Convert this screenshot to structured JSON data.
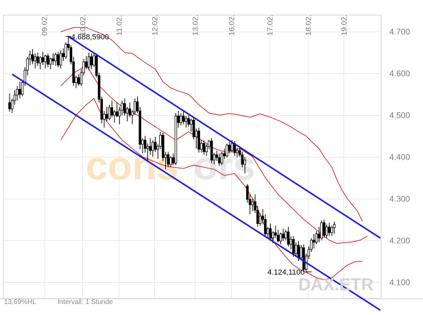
{
  "chart_data": {
    "type": "candlestick",
    "x_tick_labels": [
      "09.02.",
      "10.02.",
      "11.02.",
      "12.02.",
      "13.02.",
      "16.02.",
      "17.02.",
      "18.02.",
      "19.02."
    ],
    "y_ticks": [
      4100,
      4200,
      4300,
      4400,
      4500,
      4600,
      4700
    ],
    "y_tick_labels": [
      "4.100",
      "4.200",
      "4.300",
      "4.400",
      "4.500",
      "4.600",
      "4.700"
    ],
    "ylim": [
      4060,
      4740
    ],
    "grid": true,
    "annotations": [
      {
        "label": "4.688,5900",
        "value": 4688.59,
        "candle_index": 23
      },
      {
        "label": "4.124,1100",
        "value": 4124.11,
        "candle_index": 117
      }
    ],
    "trend_channel": {
      "upper": [
        {
          "candle": 23,
          "value": 4688.59
        },
        {
          "candle": 145,
          "value": 4205
        }
      ],
      "lower": [
        {
          "candle": 1,
          "value": 4598
        },
        {
          "candle": 145,
          "value": 4032
        }
      ]
    },
    "candles": [
      [
        4530,
        4552,
        4508,
        4515
      ],
      [
        4515,
        4540,
        4505,
        4535
      ],
      [
        4535,
        4560,
        4525,
        4548
      ],
      [
        4548,
        4570,
        4535,
        4562
      ],
      [
        4562,
        4580,
        4540,
        4550
      ],
      [
        4550,
        4585,
        4545,
        4578
      ],
      [
        4578,
        4615,
        4570,
        4608
      ],
      [
        4608,
        4640,
        4595,
        4635
      ],
      [
        4635,
        4655,
        4620,
        4645
      ],
      [
        4645,
        4658,
        4622,
        4630
      ],
      [
        4630,
        4648,
        4612,
        4640
      ],
      [
        4640,
        4650,
        4618,
        4625
      ],
      [
        4625,
        4642,
        4610,
        4638
      ],
      [
        4638,
        4652,
        4620,
        4628
      ],
      [
        4628,
        4645,
        4612,
        4642
      ],
      [
        4642,
        4648,
        4615,
        4622
      ],
      [
        4622,
        4638,
        4610,
        4635
      ],
      [
        4635,
        4648,
        4620,
        4630
      ],
      [
        4630,
        4650,
        4618,
        4645
      ],
      [
        4645,
        4652,
        4615,
        4620
      ],
      [
        4620,
        4655,
        4612,
        4648
      ],
      [
        4648,
        4660,
        4630,
        4640
      ],
      [
        4640,
        4675,
        4635,
        4670
      ],
      [
        4670,
        4690,
        4655,
        4662
      ],
      [
        4662,
        4668,
        4622,
        4628
      ],
      [
        4628,
        4640,
        4570,
        4578
      ],
      [
        4578,
        4595,
        4565,
        4590
      ],
      [
        4590,
        4598,
        4570,
        4575
      ],
      [
        4575,
        4610,
        4570,
        4602
      ],
      [
        4602,
        4635,
        4595,
        4628
      ],
      [
        4628,
        4642,
        4610,
        4615
      ],
      [
        4615,
        4650,
        4608,
        4640
      ],
      [
        4640,
        4648,
        4610,
        4620
      ],
      [
        4620,
        4650,
        4615,
        4642
      ],
      [
        4642,
        4648,
        4590,
        4595
      ],
      [
        4595,
        4602,
        4530,
        4538
      ],
      [
        4538,
        4545,
        4480,
        4490
      ],
      [
        4490,
        4510,
        4470,
        4502
      ],
      [
        4502,
        4520,
        4485,
        4492
      ],
      [
        4492,
        4525,
        4488,
        4518
      ],
      [
        4518,
        4535,
        4495,
        4500
      ],
      [
        4500,
        4512,
        4482,
        4508
      ],
      [
        4508,
        4530,
        4495,
        4498
      ],
      [
        4498,
        4520,
        4478,
        4512
      ],
      [
        4512,
        4535,
        4500,
        4528
      ],
      [
        4528,
        4540,
        4498,
        4505
      ],
      [
        4505,
        4520,
        4485,
        4515
      ],
      [
        4515,
        4530,
        4495,
        4500
      ],
      [
        4500,
        4512,
        4478,
        4508
      ],
      [
        4508,
        4540,
        4500,
        4532
      ],
      [
        4532,
        4545,
        4505,
        4510
      ],
      [
        4510,
        4520,
        4418,
        4430
      ],
      [
        4430,
        4445,
        4408,
        4440
      ],
      [
        4440,
        4450,
        4410,
        4420
      ],
      [
        4420,
        4432,
        4390,
        4425
      ],
      [
        4425,
        4445,
        4405,
        4415
      ],
      [
        4415,
        4440,
        4400,
        4435
      ],
      [
        4435,
        4448,
        4412,
        4418
      ],
      [
        4418,
        4430,
        4395,
        4425
      ],
      [
        4425,
        4460,
        4418,
        4452
      ],
      [
        4452,
        4458,
        4390,
        4398
      ],
      [
        4398,
        4412,
        4370,
        4405
      ],
      [
        4405,
        4412,
        4375,
        4382
      ],
      [
        4382,
        4402,
        4375,
        4398
      ],
      [
        4398,
        4408,
        4380,
        4385
      ],
      [
        4385,
        4505,
        4380,
        4498
      ],
      [
        4498,
        4510,
        4470,
        4482
      ],
      [
        4482,
        4505,
        4475,
        4498
      ],
      [
        4498,
        4512,
        4478,
        4485
      ],
      [
        4485,
        4498,
        4470,
        4492
      ],
      [
        4492,
        4500,
        4472,
        4478
      ],
      [
        4478,
        4492,
        4460,
        4488
      ],
      [
        4488,
        4495,
        4442,
        4448
      ],
      [
        4448,
        4468,
        4420,
        4462
      ],
      [
        4462,
        4470,
        4410,
        4418
      ],
      [
        4418,
        4440,
        4410,
        4432
      ],
      [
        4432,
        4440,
        4405,
        4412
      ],
      [
        4412,
        4430,
        4402,
        4425
      ],
      [
        4425,
        4440,
        4418,
        4438
      ],
      [
        4438,
        4445,
        4385,
        4392
      ],
      [
        4392,
        4410,
        4382,
        4405
      ],
      [
        4405,
        4415,
        4390,
        4398
      ],
      [
        4398,
        4408,
        4378,
        4385
      ],
      [
        4385,
        4412,
        4380,
        4408
      ],
      [
        4408,
        4420,
        4395,
        4402
      ],
      [
        4402,
        4432,
        4398,
        4428
      ],
      [
        4428,
        4436,
        4408,
        4415
      ],
      [
        4415,
        4440,
        4410,
        4432
      ],
      [
        4432,
        4438,
        4402,
        4410
      ],
      [
        4410,
        4422,
        4398,
        4415
      ],
      [
        4415,
        4425,
        4400,
        4405
      ],
      [
        4405,
        4412,
        4375,
        4382
      ],
      [
        4382,
        4400,
        4360,
        4392
      ],
      [
        4330,
        4335,
        4290,
        4298
      ],
      [
        4298,
        4310,
        4262,
        4285
      ],
      [
        4285,
        4300,
        4270,
        4292
      ],
      [
        4292,
        4310,
        4265,
        4272
      ],
      [
        4272,
        4282,
        4232,
        4240
      ],
      [
        4240,
        4265,
        4235,
        4258
      ],
      [
        4258,
        4275,
        4240,
        4250
      ],
      [
        4250,
        4262,
        4208,
        4215
      ],
      [
        4215,
        4232,
        4205,
        4228
      ],
      [
        4228,
        4240,
        4198,
        4205
      ],
      [
        4205,
        4222,
        4192,
        4218
      ],
      [
        4218,
        4235,
        4205,
        4212
      ],
      [
        4212,
        4225,
        4195,
        4198
      ],
      [
        4198,
        4218,
        4190,
        4215
      ],
      [
        4215,
        4228,
        4198,
        4205
      ],
      [
        4205,
        4225,
        4200,
        4220
      ],
      [
        4220,
        4232,
        4185,
        4190
      ],
      [
        4190,
        4210,
        4178,
        4202
      ],
      [
        4202,
        4210,
        4160,
        4168
      ],
      [
        4168,
        4195,
        4162,
        4188
      ],
      [
        4188,
        4198,
        4150,
        4158
      ],
      [
        4158,
        4188,
        4152,
        4182
      ],
      [
        4182,
        4190,
        4124,
        4130
      ],
      [
        4130,
        4168,
        4124,
        4162
      ],
      [
        4162,
        4185,
        4155,
        4178
      ],
      [
        4178,
        4205,
        4172,
        4200
      ],
      [
        4200,
        4215,
        4180,
        4195
      ],
      [
        4195,
        4222,
        4190,
        4215
      ],
      [
        4215,
        4232,
        4195,
        4205
      ],
      [
        4205,
        4248,
        4200,
        4242
      ],
      [
        4242,
        4250,
        4205,
        4212
      ],
      [
        4212,
        4238,
        4205,
        4232
      ],
      [
        4232,
        4242,
        4210,
        4218
      ],
      [
        4218,
        4235,
        4210,
        4230
      ],
      [
        4230,
        4245,
        4215,
        4238
      ]
    ],
    "bollinger_bands": {
      "upper": [
        [
          20,
          4700
        ],
        [
          25,
          4710
        ],
        [
          30,
          4710
        ],
        [
          36,
          4695
        ],
        [
          40,
          4680
        ],
        [
          45,
          4650
        ],
        [
          48,
          4648
        ],
        [
          52,
          4630
        ],
        [
          57,
          4610
        ],
        [
          60,
          4580
        ],
        [
          63,
          4565
        ],
        [
          66,
          4558
        ],
        [
          70,
          4550
        ],
        [
          74,
          4525
        ],
        [
          78,
          4505
        ],
        [
          82,
          4500
        ],
        [
          86,
          4504
        ],
        [
          90,
          4500
        ],
        [
          94,
          4495
        ],
        [
          98,
          4503
        ],
        [
          102,
          4495
        ],
        [
          106,
          4485
        ],
        [
          110,
          4472
        ],
        [
          113,
          4460
        ],
        [
          116,
          4450
        ],
        [
          118,
          4437
        ],
        [
          121,
          4420
        ],
        [
          123,
          4400
        ],
        [
          126,
          4375
        ],
        [
          128,
          4345
        ],
        [
          130,
          4320
        ],
        [
          132,
          4300
        ],
        [
          134,
          4285
        ],
        [
          136,
          4270
        ],
        [
          138,
          4245
        ]
      ],
      "middle": [
        [
          20,
          4570
        ],
        [
          25,
          4600
        ],
        [
          30,
          4620
        ],
        [
          35,
          4570
        ],
        [
          40,
          4540
        ],
        [
          45,
          4515
        ],
        [
          50,
          4500
        ],
        [
          55,
          4480
        ],
        [
          60,
          4460
        ],
        [
          65,
          4440
        ],
        [
          70,
          4460
        ],
        [
          75,
          4440
        ],
        [
          80,
          4420
        ],
        [
          85,
          4410
        ],
        [
          90,
          4420
        ],
        [
          95,
          4400
        ],
        [
          100,
          4350
        ],
        [
          105,
          4310
        ],
        [
          110,
          4280
        ],
        [
          115,
          4250
        ],
        [
          120,
          4225
        ],
        [
          125,
          4200
        ],
        [
          128,
          4192
        ],
        [
          131,
          4194
        ],
        [
          134,
          4196
        ],
        [
          137,
          4200
        ],
        [
          140,
          4210
        ]
      ],
      "lower": [
        [
          20,
          4440
        ],
        [
          23,
          4470
        ],
        [
          26,
          4500
        ],
        [
          30,
          4525
        ],
        [
          33,
          4540
        ],
        [
          36,
          4500
        ],
        [
          40,
          4470
        ],
        [
          44,
          4440
        ],
        [
          48,
          4420
        ],
        [
          52,
          4400
        ],
        [
          56,
          4390
        ],
        [
          60,
          4380
        ],
        [
          64,
          4375
        ],
        [
          68,
          4372
        ],
        [
          72,
          4380
        ],
        [
          76,
          4375
        ],
        [
          80,
          4370
        ],
        [
          84,
          4355
        ],
        [
          88,
          4360
        ],
        [
          92,
          4330
        ],
        [
          96,
          4290
        ],
        [
          100,
          4230
        ],
        [
          104,
          4190
        ],
        [
          108,
          4160
        ],
        [
          111,
          4140
        ],
        [
          114,
          4128
        ],
        [
          117,
          4120
        ],
        [
          120,
          4110
        ],
        [
          123,
          4105
        ],
        [
          126,
          4110
        ],
        [
          129,
          4125
        ],
        [
          132,
          4140
        ],
        [
          135,
          4148
        ],
        [
          138,
          4150
        ]
      ]
    },
    "watermark": "consors"
  },
  "footer": {
    "left": "13,69%HL",
    "interval": "Intervall: 1 Stunde",
    "symbol": "DAX.ETR"
  }
}
